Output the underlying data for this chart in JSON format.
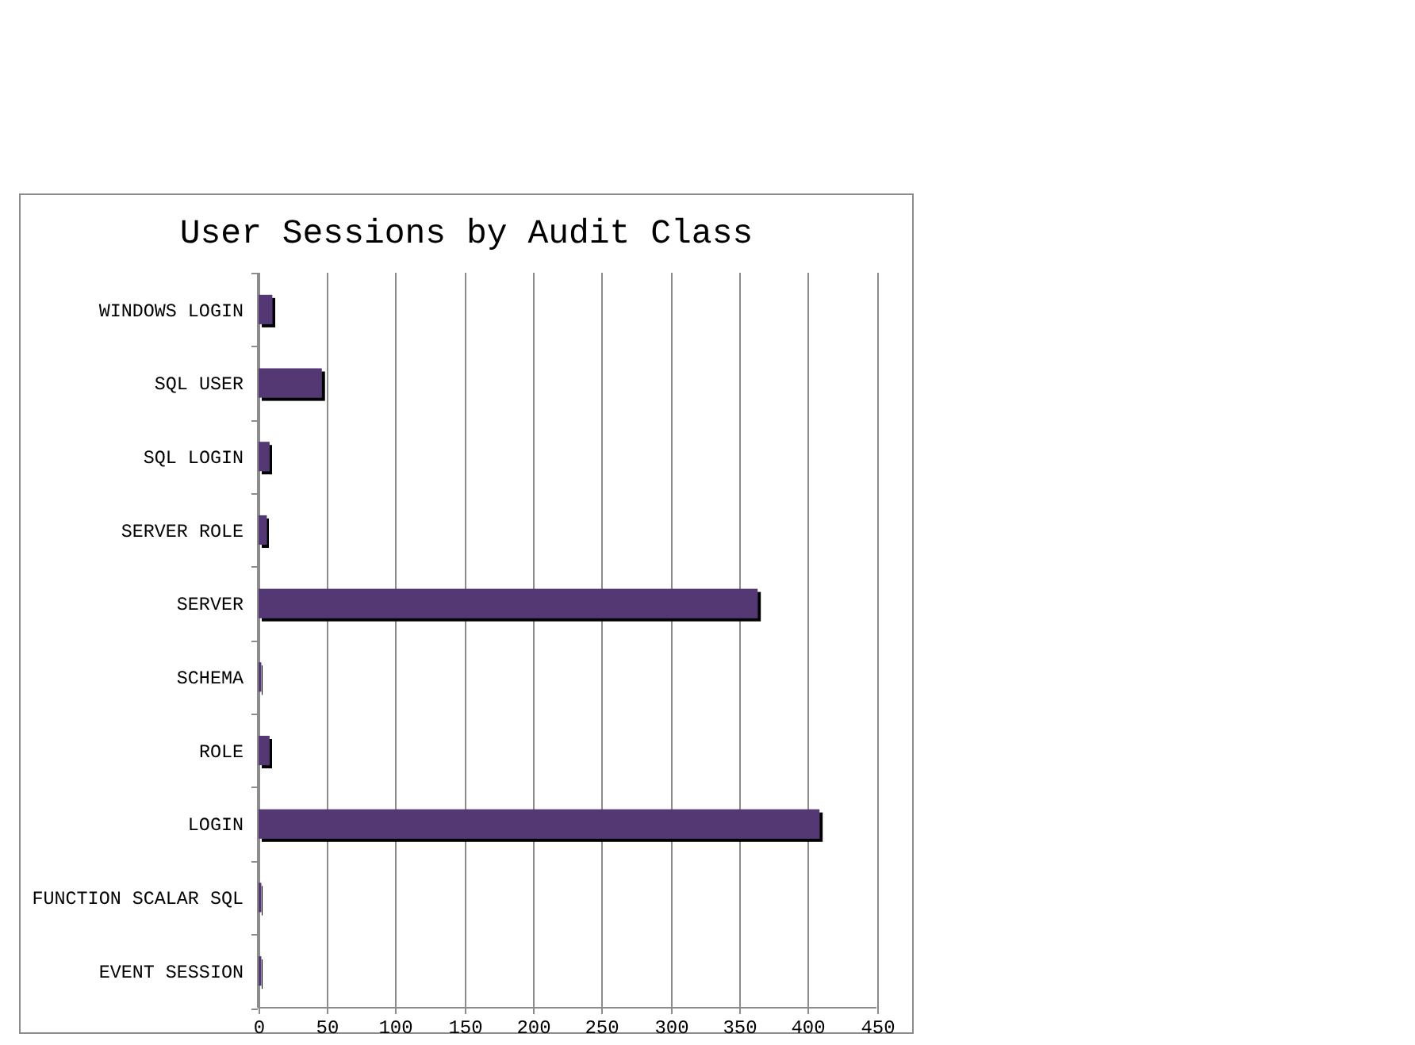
{
  "chart_data": {
    "type": "bar",
    "orientation": "horizontal",
    "title": "User Sessions by Audit Class",
    "categories": [
      "WINDOWS LOGIN",
      "SQL USER",
      "SQL LOGIN",
      "SERVER ROLE",
      "SERVER",
      "SCHEMA",
      "ROLE",
      "LOGIN",
      "FUNCTION SCALAR SQL",
      "EVENT SESSION"
    ],
    "values": [
      10,
      46,
      8,
      6,
      363,
      2,
      8,
      408,
      2,
      2
    ],
    "color": "#533873",
    "xlim": [
      0,
      450
    ],
    "xticks": [
      0,
      50,
      100,
      150,
      200,
      250,
      300,
      350,
      400,
      450
    ],
    "grid": "x"
  }
}
